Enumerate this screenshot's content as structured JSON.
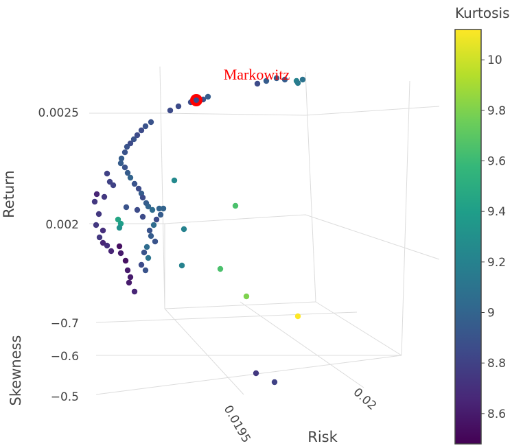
{
  "chart_data": {
    "type": "scatter3d",
    "axes": {
      "x": {
        "label": "Risk",
        "ticks": [
          "0.0195",
          "0.02"
        ]
      },
      "y": {
        "label": "Skewness",
        "ticks": [
          "−0.7",
          "−0.6",
          "−0.5"
        ]
      },
      "z": {
        "label": "Return",
        "ticks": [
          "0.0025",
          "0.002"
        ]
      }
    },
    "colorbar": {
      "title": "Kurtosis",
      "range": [
        8.48,
        10.12
      ],
      "ticks": [
        "10",
        "9.8",
        "9.6",
        "9.4",
        "9.2",
        "9",
        "8.8",
        "8.6"
      ],
      "colorscale": "Viridis"
    },
    "annotation": {
      "text": "Markowitz",
      "color": "#ff0000"
    },
    "grid": true,
    "points": [
      [
        375,
        122,
        8.85
      ],
      [
        388,
        118,
        8.95
      ],
      [
        403,
        114,
        8.95
      ],
      [
        415,
        116,
        8.95
      ],
      [
        432,
        118,
        9.2
      ],
      [
        441,
        116,
        9.1
      ],
      [
        434,
        121,
        9.15
      ],
      [
        303,
        141,
        8.95
      ],
      [
        296,
        145,
        8.9
      ],
      [
        285,
        147,
        8.9
      ],
      [
        278,
        149,
        8.85
      ],
      [
        260,
        155,
        8.85
      ],
      [
        248,
        161,
        8.85
      ],
      [
        220,
        178,
        8.9
      ],
      [
        212,
        184,
        8.9
      ],
      [
        206,
        190,
        8.85
      ],
      [
        200,
        197,
        8.85
      ],
      [
        195,
        203,
        8.9
      ],
      [
        190,
        209,
        8.85
      ],
      [
        185,
        214,
        8.9
      ],
      [
        182,
        222,
        8.9
      ],
      [
        177,
        231,
        8.95
      ],
      [
        176,
        238,
        8.95
      ],
      [
        182,
        244,
        8.9
      ],
      [
        186,
        252,
        8.95
      ],
      [
        190,
        259,
        9.0
      ],
      [
        196,
        268,
        8.9
      ],
      [
        202,
        275,
        8.85
      ],
      [
        206,
        282,
        8.95
      ],
      [
        208,
        288,
        8.85
      ],
      [
        213,
        296,
        8.95
      ],
      [
        216,
        301,
        9.0
      ],
      [
        222,
        306,
        9.05
      ],
      [
        232,
        304,
        9.0
      ],
      [
        238,
        304,
        9.0
      ],
      [
        234,
        313,
        8.95
      ],
      [
        228,
        320,
        8.85
      ],
      [
        224,
        328,
        9.05
      ],
      [
        218,
        336,
        8.9
      ],
      [
        220,
        344,
        8.95
      ],
      [
        226,
        352,
        8.9
      ],
      [
        214,
        360,
        9.05
      ],
      [
        210,
        368,
        8.9
      ],
      [
        216,
        376,
        9.1
      ],
      [
        206,
        386,
        8.85
      ],
      [
        212,
        394,
        8.9
      ],
      [
        156,
        253,
        8.8
      ],
      [
        160,
        265,
        8.8
      ],
      [
        165,
        270,
        8.8
      ],
      [
        141,
        283,
        8.65
      ],
      [
        152,
        287,
        8.75
      ],
      [
        138,
        294,
        8.75
      ],
      [
        144,
        312,
        8.75
      ],
      [
        140,
        328,
        8.75
      ],
      [
        150,
        336,
        8.7
      ],
      [
        145,
        346,
        8.75
      ],
      [
        150,
        354,
        8.65
      ],
      [
        156,
        358,
        8.7
      ],
      [
        162,
        366,
        8.65
      ],
      [
        174,
        359,
        8.55
      ],
      [
        176,
        369,
        8.6
      ],
      [
        183,
        380,
        8.55
      ],
      [
        186,
        394,
        8.6
      ],
      [
        190,
        404,
        8.6
      ],
      [
        188,
        412,
        8.6
      ],
      [
        196,
        425,
        8.65
      ],
      [
        172,
        320,
        9.45
      ],
      [
        176,
        326,
        9.4
      ],
      [
        174,
        332,
        9.3
      ],
      [
        184,
        302,
        8.9
      ],
      [
        200,
        306,
        8.85
      ],
      [
        208,
        316,
        8.85
      ],
      [
        254,
        263,
        9.25
      ],
      [
        268,
        334,
        9.2
      ],
      [
        265,
        387,
        9.2
      ],
      [
        343,
        300,
        9.65
      ],
      [
        321,
        392,
        9.65
      ],
      [
        359,
        432,
        9.8
      ],
      [
        434,
        461,
        10.12
      ],
      [
        373,
        544,
        8.75
      ],
      [
        400,
        557,
        8.8
      ]
    ]
  }
}
